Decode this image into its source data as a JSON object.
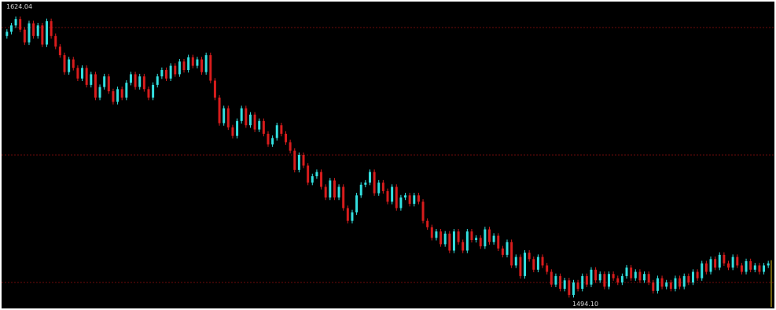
{
  "chart_data": {
    "type": "candlestick",
    "title": "",
    "xlabel": "",
    "ylabel": "",
    "ylim": [
      1490,
      1630
    ],
    "gridlines_y": [
      1620,
      1560,
      1500
    ],
    "grid": true,
    "legend": "none",
    "colors": {
      "background": "#000000",
      "up": "#33e0e0",
      "down": "#d81c1c",
      "grid": "#6e0a0a",
      "marker": "#e0c020"
    },
    "annotations": {
      "high_label": "1624.04",
      "high_value": 1624.04,
      "low_label": "1494.10",
      "low_value": 1494.1
    },
    "values": [
      1618,
      1621,
      1624,
      1619,
      1613,
      1622,
      1616,
      1621,
      1612,
      1623,
      1616,
      1611,
      1607,
      1599,
      1605,
      1601,
      1596,
      1601,
      1593,
      1598,
      1587,
      1592,
      1597,
      1590,
      1585,
      1591,
      1587,
      1594,
      1598,
      1592,
      1597,
      1591,
      1587,
      1593,
      1597,
      1600,
      1596,
      1602,
      1598,
      1604,
      1600,
      1606,
      1602,
      1605,
      1599,
      1607,
      1595,
      1587,
      1575,
      1582,
      1573,
      1569,
      1576,
      1582,
      1574,
      1579,
      1572,
      1576,
      1570,
      1565,
      1568,
      1574,
      1570,
      1566,
      1562,
      1553,
      1560,
      1555,
      1547,
      1550,
      1552,
      1545,
      1540,
      1548,
      1540,
      1545,
      1535,
      1529,
      1533,
      1541,
      1546,
      1547,
      1552,
      1542,
      1547,
      1543,
      1538,
      1545,
      1535,
      1540,
      1541,
      1537,
      1541,
      1538,
      1529,
      1526,
      1521,
      1524,
      1518,
      1523,
      1515,
      1524,
      1519,
      1515,
      1524,
      1520,
      1521,
      1517,
      1525,
      1519,
      1522,
      1516,
      1513,
      1519,
      1508,
      1512,
      1503,
      1514,
      1511,
      1506,
      1512,
      1508,
      1505,
      1499,
      1503,
      1497,
      1501,
      1494.1,
      1500,
      1497,
      1503,
      1499,
      1506,
      1501,
      1504,
      1498,
      1504,
      1502,
      1500,
      1503,
      1507,
      1502,
      1505,
      1501,
      1504,
      1500,
      1496,
      1502,
      1498,
      1500,
      1497,
      1502,
      1498,
      1503,
      1500,
      1505,
      1502,
      1509,
      1505,
      1511,
      1507,
      1513,
      1509,
      1507,
      1512,
      1508,
      1505,
      1510,
      1506,
      1508,
      1505,
      1508,
      1509
    ]
  }
}
